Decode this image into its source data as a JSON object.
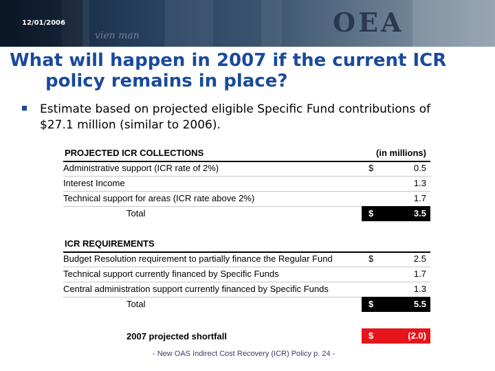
{
  "header": {
    "date": "12/01/2006",
    "logo": "OEA",
    "scribble": "vien man"
  },
  "title": {
    "line1": "What will happen in 2007 if the current ICR",
    "line2": "policy remains in place?"
  },
  "bullet": {
    "line1": "Estimate based on projected eligible Specific Fund contributions of",
    "line2": "$27.1 million (similar to 2006)."
  },
  "collections": {
    "heading": "PROJECTED ICR COLLECTIONS",
    "units": "(in millions)",
    "rows": [
      {
        "label": "Administrative support (ICR rate of 2%)",
        "currency": "$",
        "value": "0.5"
      },
      {
        "label": "Interest Income",
        "currency": "",
        "value": "1.3"
      },
      {
        "label": "Technical support for areas (ICR rate above 2%)",
        "currency": "",
        "value": "1.7"
      }
    ],
    "total": {
      "label": "Total",
      "currency": "$",
      "value": "3.5"
    }
  },
  "requirements": {
    "heading": "ICR REQUIREMENTS",
    "rows": [
      {
        "label": "Budget Resolution requirement to partially finance the Regular Fund",
        "currency": "$",
        "value": "2.5"
      },
      {
        "label": "Technical support currently financed by Specific Funds",
        "currency": "",
        "value": "1.7"
      },
      {
        "label": "Central administration support currently financed by Specific Funds",
        "currency": "",
        "value": "1.3"
      }
    ],
    "total": {
      "label": "Total",
      "currency": "$",
      "value": "5.5"
    }
  },
  "shortfall": {
    "label": "2007 projected shortfall",
    "currency": "$",
    "value": "(2.0)"
  },
  "footer": "-  New OAS Indirect Cost Recovery (ICR) Policy p. 24 -",
  "colors": {
    "title": "#1a4a9c",
    "total_box": "#000000",
    "shortfall_box": "#e8141b"
  }
}
